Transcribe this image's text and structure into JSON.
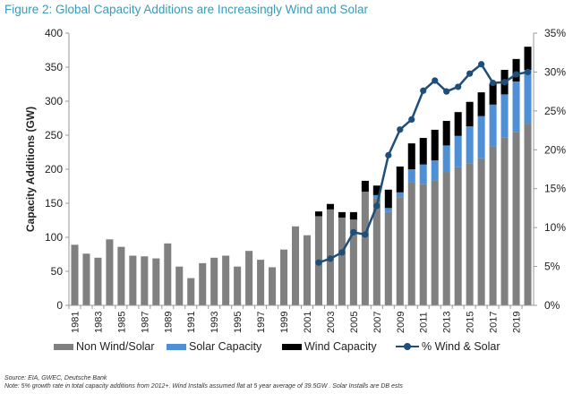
{
  "chart_data": {
    "type": "bar",
    "title": "Figure 2: Global Capacity Additions are Increasingly Wind and Solar",
    "xlabel": "",
    "ylabel": "Capacity Additions (GW)",
    "y2label": "",
    "ylim": [
      0,
      400
    ],
    "y2lim": [
      0,
      0.35
    ],
    "yticks": [
      "0",
      "50",
      "100",
      "150",
      "200",
      "250",
      "300",
      "350",
      "400"
    ],
    "y2ticks": [
      "0%",
      "5%",
      "10%",
      "15%",
      "20%",
      "25%",
      "30%",
      "35%"
    ],
    "categories": [
      "1981",
      "1982",
      "1983",
      "1984",
      "1985",
      "1986",
      "1987",
      "1988",
      "1989",
      "1990",
      "1991",
      "1992",
      "1993",
      "1994",
      "1995",
      "1996",
      "1997",
      "1998",
      "1999",
      "2000",
      "2001",
      "2002",
      "2003",
      "2004",
      "2005",
      "2006",
      "2007",
      "2008",
      "2009",
      "2010",
      "2011",
      "2012",
      "2013",
      "2014",
      "2015",
      "2016",
      "2017",
      "2018",
      "2019",
      "2020"
    ],
    "xtick_labels": [
      "1981",
      "1983",
      "1985",
      "1987",
      "1989",
      "1991",
      "1993",
      "1995",
      "1997",
      "1999",
      "2001",
      "2003",
      "2005",
      "2007",
      "2009",
      "2011",
      "2013",
      "2015",
      "2017",
      "2019"
    ],
    "series": [
      {
        "name": "Non Wind/Solar",
        "type": "stacked-bar",
        "color": "#808080",
        "values": [
          89,
          76,
          70,
          97,
          86,
          73,
          72,
          69,
          91,
          57,
          40,
          62,
          70,
          73,
          57,
          80,
          67,
          56,
          82,
          116,
          103,
          131,
          141,
          129,
          126,
          167,
          157,
          137,
          159,
          181,
          178,
          183,
          196,
          203,
          209,
          216,
          234,
          247,
          255,
          267
        ]
      },
      {
        "name": "Solar Capacity",
        "type": "stacked-bar",
        "color": "#4f8fd6",
        "values": [
          0,
          0,
          0,
          0,
          0,
          0,
          0,
          0,
          0,
          0,
          0,
          0,
          0,
          0,
          0,
          0,
          0,
          0,
          0,
          0,
          0,
          0,
          0,
          0,
          0,
          0,
          5,
          6,
          7,
          19,
          29,
          30,
          39,
          46,
          54,
          62,
          61,
          63,
          74,
          79
        ]
      },
      {
        "name": "Wind Capacity",
        "type": "stacked-bar",
        "color": "#000000",
        "values": [
          0,
          0,
          0,
          0,
          0,
          0,
          0,
          0,
          0,
          0,
          0,
          0,
          0,
          0,
          0,
          0,
          0,
          0,
          0,
          0,
          0,
          7,
          8,
          8,
          11,
          16,
          14,
          27,
          38,
          38,
          39,
          45,
          36,
          35,
          36,
          35,
          31,
          36,
          33,
          34
        ]
      },
      {
        "name": "% Wind & Solar",
        "type": "line",
        "axis": "right",
        "color": "#1f4e79",
        "values": [
          null,
          null,
          null,
          null,
          null,
          null,
          null,
          null,
          null,
          null,
          null,
          null,
          null,
          null,
          null,
          null,
          null,
          null,
          null,
          null,
          null,
          0.055,
          0.06,
          0.068,
          0.094,
          0.091,
          0.128,
          0.193,
          0.226,
          0.239,
          0.276,
          0.289,
          0.275,
          0.281,
          0.298,
          0.31,
          0.286,
          0.287,
          0.297,
          0.3
        ]
      }
    ],
    "grid": false,
    "legend": "bottom"
  },
  "legend": {
    "items": [
      "Non Wind/Solar",
      "Solar Capacity",
      "Wind Capacity",
      "% Wind & Solar"
    ]
  },
  "footer": {
    "source": "Source: EIA, GWEC, Deutsche Bank",
    "note": "Note: 5% growth rate in total capacity additions from 2012+.  Wind Installs assumed flat at 5 year average of 39.5GW .  Solar Installs are DB ests"
  }
}
